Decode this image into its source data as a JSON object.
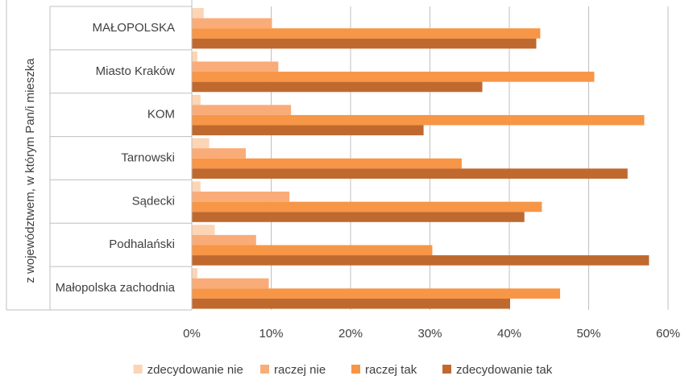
{
  "chart_data": {
    "type": "bar",
    "orientation": "horizontal",
    "ylabel": "z województwem, w którym Pan/i mieszka",
    "categories": [
      "MAŁOPOLSKA",
      "Miasto Kraków",
      "KOM",
      "Tarnowski",
      "Sądecki",
      "Podhalański",
      "Małopolska zachodnia"
    ],
    "series": [
      {
        "name": "zdecydowanie nie",
        "color": "#fcd5b5",
        "values": [
          1.5,
          0.7,
          1.1,
          2.2,
          1.1,
          2.9,
          0.7
        ]
      },
      {
        "name": "raczej nie",
        "color": "#f9ac78",
        "values": [
          10.1,
          10.9,
          12.5,
          6.8,
          12.3,
          8.1,
          9.7
        ]
      },
      {
        "name": "raczej tak",
        "color": "#f79646",
        "values": [
          43.9,
          50.7,
          57.0,
          34.0,
          44.1,
          30.3,
          46.4
        ]
      },
      {
        "name": "zdecydowanie tak",
        "color": "#c0692f",
        "values": [
          43.4,
          36.6,
          29.2,
          54.9,
          41.9,
          57.6,
          40.1
        ]
      }
    ],
    "xlim": [
      0,
      60
    ],
    "xticks": [
      "0%",
      "10%",
      "20%",
      "30%",
      "40%",
      "50%",
      "60%"
    ],
    "grid": true,
    "legend_position": "bottom"
  }
}
